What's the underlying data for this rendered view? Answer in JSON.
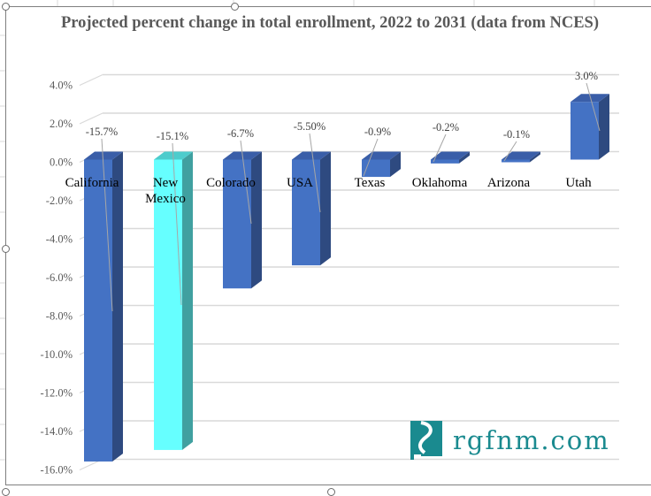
{
  "chart_data": {
    "type": "bar",
    "title": "Projected percent change in total enrollment, 2022 to 2031 (data from NCES)",
    "xlabel": "",
    "ylabel": "",
    "ylim": [
      -16.0,
      4.0
    ],
    "grid": true,
    "three_d": true,
    "legend": "none",
    "y_ticks": [
      "4.0%",
      "2.0%",
      "0.0%",
      "-2.0%",
      "-4.0%",
      "-6.0%",
      "-8.0%",
      "-10.0%",
      "-12.0%",
      "-14.0%",
      "-16.0%"
    ],
    "y_tick_values": [
      4,
      2,
      0,
      -2,
      -4,
      -6,
      -8,
      -10,
      -12,
      -14,
      -16
    ],
    "categories": [
      "California",
      "New Mexico",
      "Colorado",
      "USA",
      "Texas",
      "Oklahoma",
      "Arizona",
      "Utah"
    ],
    "category_lines": [
      [
        "California"
      ],
      [
        "New",
        "Mexico"
      ],
      [
        "Colorado"
      ],
      [
        "USA"
      ],
      [
        "Texas"
      ],
      [
        "Oklahoma"
      ],
      [
        "Arizona"
      ],
      [
        "Utah"
      ]
    ],
    "values": [
      -15.7,
      -15.1,
      -6.7,
      -5.5,
      -0.9,
      -0.2,
      -0.1,
      3.0
    ],
    "data_labels": [
      "-15.7%",
      "-15.1%",
      "-6.7%",
      "-5.50%",
      "-0.9%",
      "-0.2%",
      "-0.1%",
      "3.0%"
    ],
    "colors": {
      "default_front": "#4472c4",
      "default_side": "#2e4a80",
      "default_top": "#3a5ea8",
      "highlight_front": "#66ffff",
      "highlight_side": "#40a0a0",
      "highlight_top": "#4dcccc"
    },
    "highlight_index": 1
  },
  "logo": {
    "text": "rgfnm.com",
    "color": "#1a8a8f"
  }
}
